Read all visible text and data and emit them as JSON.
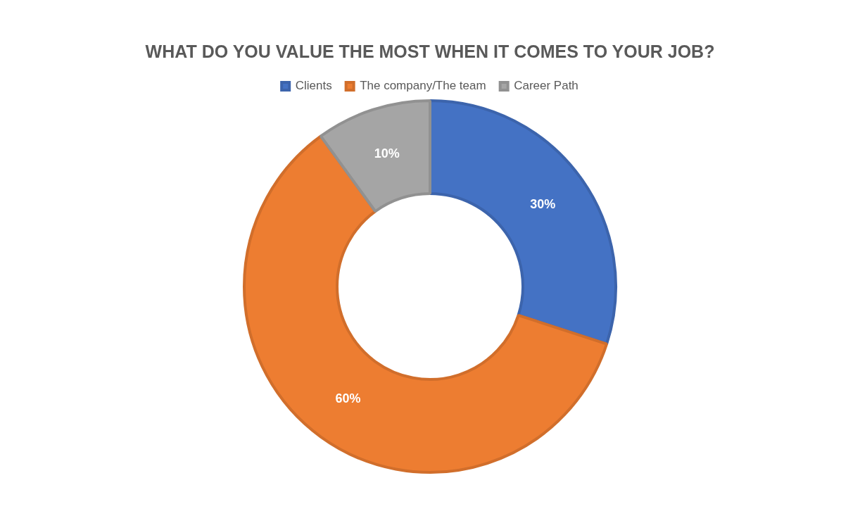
{
  "chart_data": {
    "type": "donut",
    "title": "WHAT DO YOU VALUE THE MOST WHEN IT COMES TO YOUR JOB?",
    "categories": [
      "Clients",
      "The company/The team",
      "Career Path"
    ],
    "values": [
      30,
      60,
      10
    ],
    "colors": [
      "#4472c4",
      "#ed7d31",
      "#a5a5a5"
    ],
    "value_labels": [
      "30%",
      "60%",
      "10%"
    ],
    "legend": "top"
  }
}
